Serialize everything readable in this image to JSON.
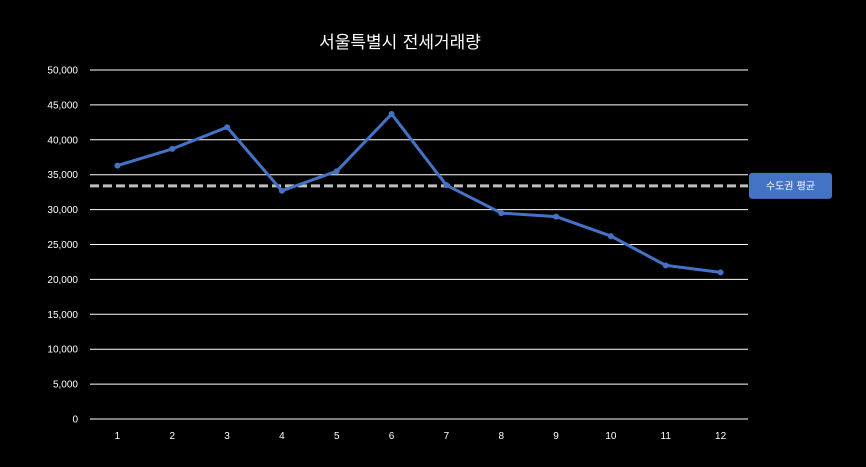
{
  "chart_data": {
    "type": "line",
    "title": "서울특별시 전세거래량",
    "xlabel": "",
    "ylabel": "",
    "categories": [
      "1",
      "2",
      "3",
      "4",
      "5",
      "6",
      "7",
      "8",
      "9",
      "10",
      "11",
      "12"
    ],
    "series": [
      {
        "values": [
          36300,
          38700,
          41800,
          32700,
          35500,
          43700,
          33500,
          29500,
          29000,
          26200,
          22000,
          21000
        ],
        "color": "#4472C4"
      }
    ],
    "reference_line": {
      "label": "수도권 평균",
      "value": 33400,
      "color": "#BFBFBF",
      "style": "dashed"
    },
    "ylim": [
      0,
      50000
    ],
    "yticks": [
      "0",
      "5,000",
      "10,000",
      "15,000",
      "20,000",
      "25,000",
      "30,000",
      "35,000",
      "40,000",
      "45,000",
      "50,000"
    ],
    "ytick_values": [
      0,
      5000,
      10000,
      15000,
      20000,
      25000,
      30000,
      35000,
      40000,
      45000,
      50000
    ],
    "grid": true,
    "gridline_color": "#FFFFFF",
    "callout_color": "#4472C4",
    "background": "#000000"
  }
}
